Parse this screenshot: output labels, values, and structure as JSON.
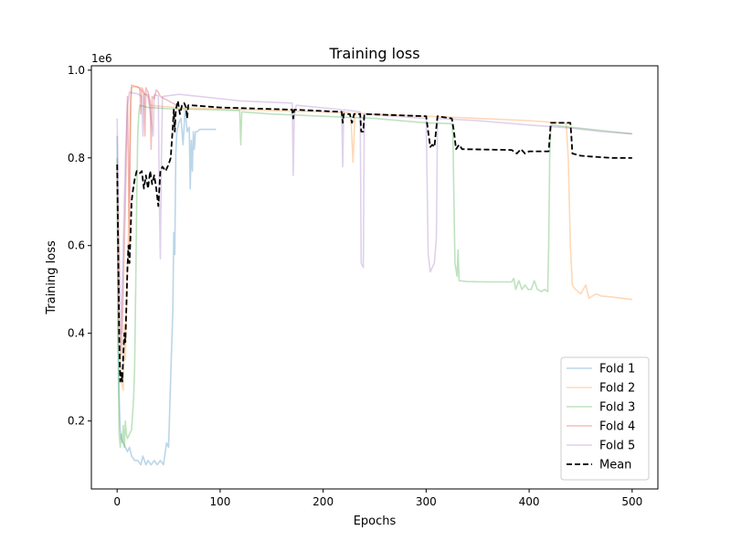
{
  "chart_data": {
    "type": "line",
    "title": "Training loss",
    "xlabel": "Epochs",
    "ylabel": "Training loss",
    "y_offset_label": "1e6",
    "xlim": [
      -25,
      525
    ],
    "ylim": [
      0.045,
      1.01
    ],
    "x_ticks": [
      0,
      100,
      200,
      300,
      400,
      500
    ],
    "y_ticks": [
      0.2,
      0.4,
      0.6,
      0.8,
      1.0
    ],
    "y_tick_labels": [
      "0.2",
      "0.4",
      "0.6",
      "0.8",
      "1.0"
    ],
    "grid": false,
    "legend_position": "lower-right",
    "series": [
      {
        "name": "Fold 1",
        "color": "#1f77b4",
        "opacity": 0.3,
        "dash": "solid",
        "points": [
          [
            0,
            0.85
          ],
          [
            1,
            0.38
          ],
          [
            2,
            0.26
          ],
          [
            3,
            0.18
          ],
          [
            4,
            0.16
          ],
          [
            6,
            0.15
          ],
          [
            8,
            0.14
          ],
          [
            10,
            0.13
          ],
          [
            12,
            0.14
          ],
          [
            14,
            0.12
          ],
          [
            17,
            0.11
          ],
          [
            20,
            0.11
          ],
          [
            23,
            0.1
          ],
          [
            25,
            0.12
          ],
          [
            28,
            0.1
          ],
          [
            30,
            0.11
          ],
          [
            33,
            0.1
          ],
          [
            36,
            0.11
          ],
          [
            39,
            0.1
          ],
          [
            42,
            0.11
          ],
          [
            45,
            0.1
          ],
          [
            48,
            0.15
          ],
          [
            50,
            0.14
          ],
          [
            52,
            0.3
          ],
          [
            54,
            0.45
          ],
          [
            55,
            0.63
          ],
          [
            56,
            0.58
          ],
          [
            57,
            0.81
          ],
          [
            58,
            0.86
          ],
          [
            60,
            0.88
          ],
          [
            62,
            0.89
          ],
          [
            64,
            0.83
          ],
          [
            66,
            0.91
          ],
          [
            68,
            0.86
          ],
          [
            70,
            0.87
          ],
          [
            71,
            0.73
          ],
          [
            72,
            0.84
          ],
          [
            73,
            0.77
          ],
          [
            74,
            0.86
          ],
          [
            75,
            0.82
          ],
          [
            76,
            0.86
          ],
          [
            78,
            0.86
          ],
          [
            80,
            0.865
          ],
          [
            85,
            0.865
          ],
          [
            90,
            0.865
          ],
          [
            96,
            0.865
          ]
        ]
      },
      {
        "name": "Fold 2",
        "color": "#ff7f0e",
        "opacity": 0.3,
        "dash": "solid",
        "points": [
          [
            0,
            0.7
          ],
          [
            2,
            0.38
          ],
          [
            4,
            0.29
          ],
          [
            6,
            0.27
          ],
          [
            7,
            0.42
          ],
          [
            8,
            0.34
          ],
          [
            9,
            0.45
          ],
          [
            10,
            0.55
          ],
          [
            11,
            0.63
          ],
          [
            12,
            0.8
          ],
          [
            13,
            0.88
          ],
          [
            14,
            0.96
          ],
          [
            16,
            0.962
          ],
          [
            20,
            0.962
          ],
          [
            25,
            0.95
          ],
          [
            30,
            0.94
          ],
          [
            32,
            0.92
          ],
          [
            40,
            0.918
          ],
          [
            60,
            0.914
          ],
          [
            100,
            0.912
          ],
          [
            150,
            0.908
          ],
          [
            200,
            0.905
          ],
          [
            224,
            0.904
          ],
          [
            227,
            0.89
          ],
          [
            229,
            0.79
          ],
          [
            231,
            0.902
          ],
          [
            300,
            0.895
          ],
          [
            320,
            0.893
          ],
          [
            350,
            0.89
          ],
          [
            400,
            0.885
          ],
          [
            430,
            0.88
          ],
          [
            436,
            0.878
          ],
          [
            438,
            0.8
          ],
          [
            440,
            0.6
          ],
          [
            442,
            0.51
          ],
          [
            445,
            0.5
          ],
          [
            450,
            0.49
          ],
          [
            455,
            0.51
          ],
          [
            458,
            0.48
          ],
          [
            465,
            0.49
          ],
          [
            470,
            0.485
          ],
          [
            480,
            0.483
          ],
          [
            490,
            0.48
          ],
          [
            500,
            0.477
          ]
        ]
      },
      {
        "name": "Fold 3",
        "color": "#2ca02c",
        "opacity": 0.3,
        "dash": "solid",
        "points": [
          [
            0,
            0.8
          ],
          [
            1,
            0.35
          ],
          [
            2,
            0.17
          ],
          [
            3,
            0.14
          ],
          [
            4,
            0.17
          ],
          [
            5,
            0.15
          ],
          [
            6,
            0.19
          ],
          [
            7,
            0.14
          ],
          [
            8,
            0.2
          ],
          [
            9,
            0.17
          ],
          [
            10,
            0.16
          ],
          [
            12,
            0.17
          ],
          [
            14,
            0.18
          ],
          [
            16,
            0.25
          ],
          [
            17,
            0.32
          ],
          [
            18,
            0.5
          ],
          [
            19,
            0.7
          ],
          [
            20,
            0.85
          ],
          [
            21,
            0.9
          ],
          [
            22,
            0.92
          ],
          [
            30,
            0.915
          ],
          [
            50,
            0.912
          ],
          [
            90,
            0.91
          ],
          [
            119,
            0.908
          ],
          [
            120,
            0.83
          ],
          [
            121,
            0.905
          ],
          [
            150,
            0.9
          ],
          [
            200,
            0.895
          ],
          [
            250,
            0.89
          ],
          [
            300,
            0.88
          ],
          [
            325,
            0.878
          ],
          [
            326,
            0.85
          ],
          [
            327,
            0.7
          ],
          [
            328,
            0.56
          ],
          [
            330,
            0.53
          ],
          [
            331,
            0.59
          ],
          [
            332,
            0.52
          ],
          [
            340,
            0.518
          ],
          [
            360,
            0.517
          ],
          [
            383,
            0.517
          ],
          [
            385,
            0.525
          ],
          [
            387,
            0.5
          ],
          [
            390,
            0.52
          ],
          [
            393,
            0.5
          ],
          [
            396,
            0.51
          ],
          [
            399,
            0.5
          ],
          [
            402,
            0.5
          ],
          [
            405,
            0.52
          ],
          [
            408,
            0.5
          ],
          [
            412,
            0.495
          ],
          [
            415,
            0.5
          ],
          [
            418,
            0.495
          ],
          [
            419,
            0.6
          ],
          [
            420,
            0.8
          ],
          [
            421,
            0.87
          ],
          [
            422,
            0.875
          ],
          [
            440,
            0.87
          ],
          [
            460,
            0.865
          ],
          [
            480,
            0.86
          ],
          [
            500,
            0.855
          ]
        ]
      },
      {
        "name": "Fold 4",
        "color": "#d62728",
        "opacity": 0.3,
        "dash": "solid",
        "points": [
          [
            0,
            0.78
          ],
          [
            2,
            0.45
          ],
          [
            4,
            0.35
          ],
          [
            6,
            0.5
          ],
          [
            8,
            0.7
          ],
          [
            10,
            0.94
          ],
          [
            11,
            0.78
          ],
          [
            12,
            0.6
          ],
          [
            13,
            0.93
          ],
          [
            14,
            0.966
          ],
          [
            18,
            0.963
          ],
          [
            22,
            0.96
          ],
          [
            23,
            0.9
          ],
          [
            24,
            0.96
          ],
          [
            26,
            0.95
          ],
          [
            27,
            0.85
          ],
          [
            28,
            0.96
          ],
          [
            30,
            0.95
          ],
          [
            32,
            0.93
          ],
          [
            33,
            0.82
          ],
          [
            34,
            0.94
          ],
          [
            36,
            0.935
          ],
          [
            38,
            0.955
          ],
          [
            40,
            0.95
          ],
          [
            42,
            0.94
          ],
          [
            50,
            0.93
          ],
          [
            58,
            0.92
          ]
        ]
      },
      {
        "name": "Fold 5",
        "color": "#9467bd",
        "opacity": 0.3,
        "dash": "solid",
        "points": [
          [
            0,
            0.89
          ],
          [
            2,
            0.6
          ],
          [
            4,
            0.4
          ],
          [
            6,
            0.6
          ],
          [
            8,
            0.8
          ],
          [
            10,
            0.92
          ],
          [
            12,
            0.95
          ],
          [
            15,
            0.948
          ],
          [
            20,
            0.946
          ],
          [
            24,
            0.94
          ],
          [
            25,
            0.85
          ],
          [
            26,
            0.945
          ],
          [
            30,
            0.944
          ],
          [
            35,
            0.85
          ],
          [
            36,
            0.944
          ],
          [
            40,
            0.942
          ],
          [
            41,
            0.7
          ],
          [
            42,
            0.57
          ],
          [
            43,
            0.8
          ],
          [
            44,
            0.94
          ],
          [
            60,
            0.945
          ],
          [
            80,
            0.94
          ],
          [
            120,
            0.93
          ],
          [
            170,
            0.925
          ],
          [
            171,
            0.76
          ],
          [
            172,
            0.9
          ],
          [
            174,
            0.92
          ],
          [
            218,
            0.91
          ],
          [
            219,
            0.78
          ],
          [
            220,
            0.91
          ],
          [
            236,
            0.905
          ],
          [
            237,
            0.56
          ],
          [
            239,
            0.55
          ],
          [
            240,
            0.9
          ],
          [
            300,
            0.89
          ],
          [
            302,
            0.58
          ],
          [
            304,
            0.54
          ],
          [
            306,
            0.55
          ],
          [
            308,
            0.56
          ],
          [
            310,
            0.62
          ],
          [
            311,
            0.89
          ],
          [
            350,
            0.885
          ],
          [
            400,
            0.875
          ],
          [
            440,
            0.868
          ],
          [
            470,
            0.86
          ],
          [
            500,
            0.855
          ]
        ]
      },
      {
        "name": "Mean",
        "color": "#000000",
        "opacity": 1.0,
        "dash": "dashed",
        "points": [
          [
            0,
            0.785
          ],
          [
            1,
            0.6
          ],
          [
            2,
            0.4
          ],
          [
            3,
            0.29
          ],
          [
            4,
            0.31
          ],
          [
            5,
            0.29
          ],
          [
            6,
            0.35
          ],
          [
            7,
            0.4
          ],
          [
            8,
            0.38
          ],
          [
            9,
            0.46
          ],
          [
            10,
            0.55
          ],
          [
            11,
            0.6
          ],
          [
            12,
            0.56
          ],
          [
            13,
            0.62
          ],
          [
            14,
            0.7
          ],
          [
            15,
            0.72
          ],
          [
            17,
            0.75
          ],
          [
            19,
            0.77
          ],
          [
            22,
            0.765
          ],
          [
            24,
            0.77
          ],
          [
            26,
            0.73
          ],
          [
            28,
            0.76
          ],
          [
            30,
            0.73
          ],
          [
            32,
            0.77
          ],
          [
            34,
            0.74
          ],
          [
            36,
            0.76
          ],
          [
            38,
            0.73
          ],
          [
            40,
            0.69
          ],
          [
            42,
            0.77
          ],
          [
            44,
            0.78
          ],
          [
            47,
            0.77
          ],
          [
            50,
            0.785
          ],
          [
            52,
            0.8
          ],
          [
            54,
            0.87
          ],
          [
            55,
            0.91
          ],
          [
            56,
            0.86
          ],
          [
            57,
            0.91
          ],
          [
            59,
            0.93
          ],
          [
            61,
            0.9
          ],
          [
            63,
            0.92
          ],
          [
            65,
            0.925
          ],
          [
            67,
            0.915
          ],
          [
            68,
            0.89
          ],
          [
            69,
            0.92
          ],
          [
            72,
            0.92
          ],
          [
            100,
            0.915
          ],
          [
            170,
            0.91
          ],
          [
            171,
            0.89
          ],
          [
            172,
            0.91
          ],
          [
            218,
            0.905
          ],
          [
            219,
            0.88
          ],
          [
            220,
            0.9
          ],
          [
            226,
            0.9
          ],
          [
            228,
            0.88
          ],
          [
            230,
            0.9
          ],
          [
            236,
            0.9
          ],
          [
            237,
            0.86
          ],
          [
            239,
            0.86
          ],
          [
            240,
            0.9
          ],
          [
            300,
            0.895
          ],
          [
            302,
            0.86
          ],
          [
            304,
            0.825
          ],
          [
            306,
            0.83
          ],
          [
            308,
            0.825
          ],
          [
            311,
            0.895
          ],
          [
            325,
            0.89
          ],
          [
            327,
            0.86
          ],
          [
            329,
            0.82
          ],
          [
            332,
            0.83
          ],
          [
            335,
            0.82
          ],
          [
            383,
            0.818
          ],
          [
            388,
            0.81
          ],
          [
            392,
            0.82
          ],
          [
            396,
            0.81
          ],
          [
            400,
            0.815
          ],
          [
            419,
            0.815
          ],
          [
            421,
            0.88
          ],
          [
            440,
            0.88
          ],
          [
            441,
            0.85
          ],
          [
            442,
            0.81
          ],
          [
            450,
            0.805
          ],
          [
            460,
            0.803
          ],
          [
            480,
            0.8
          ],
          [
            500,
            0.8
          ]
        ]
      }
    ]
  }
}
